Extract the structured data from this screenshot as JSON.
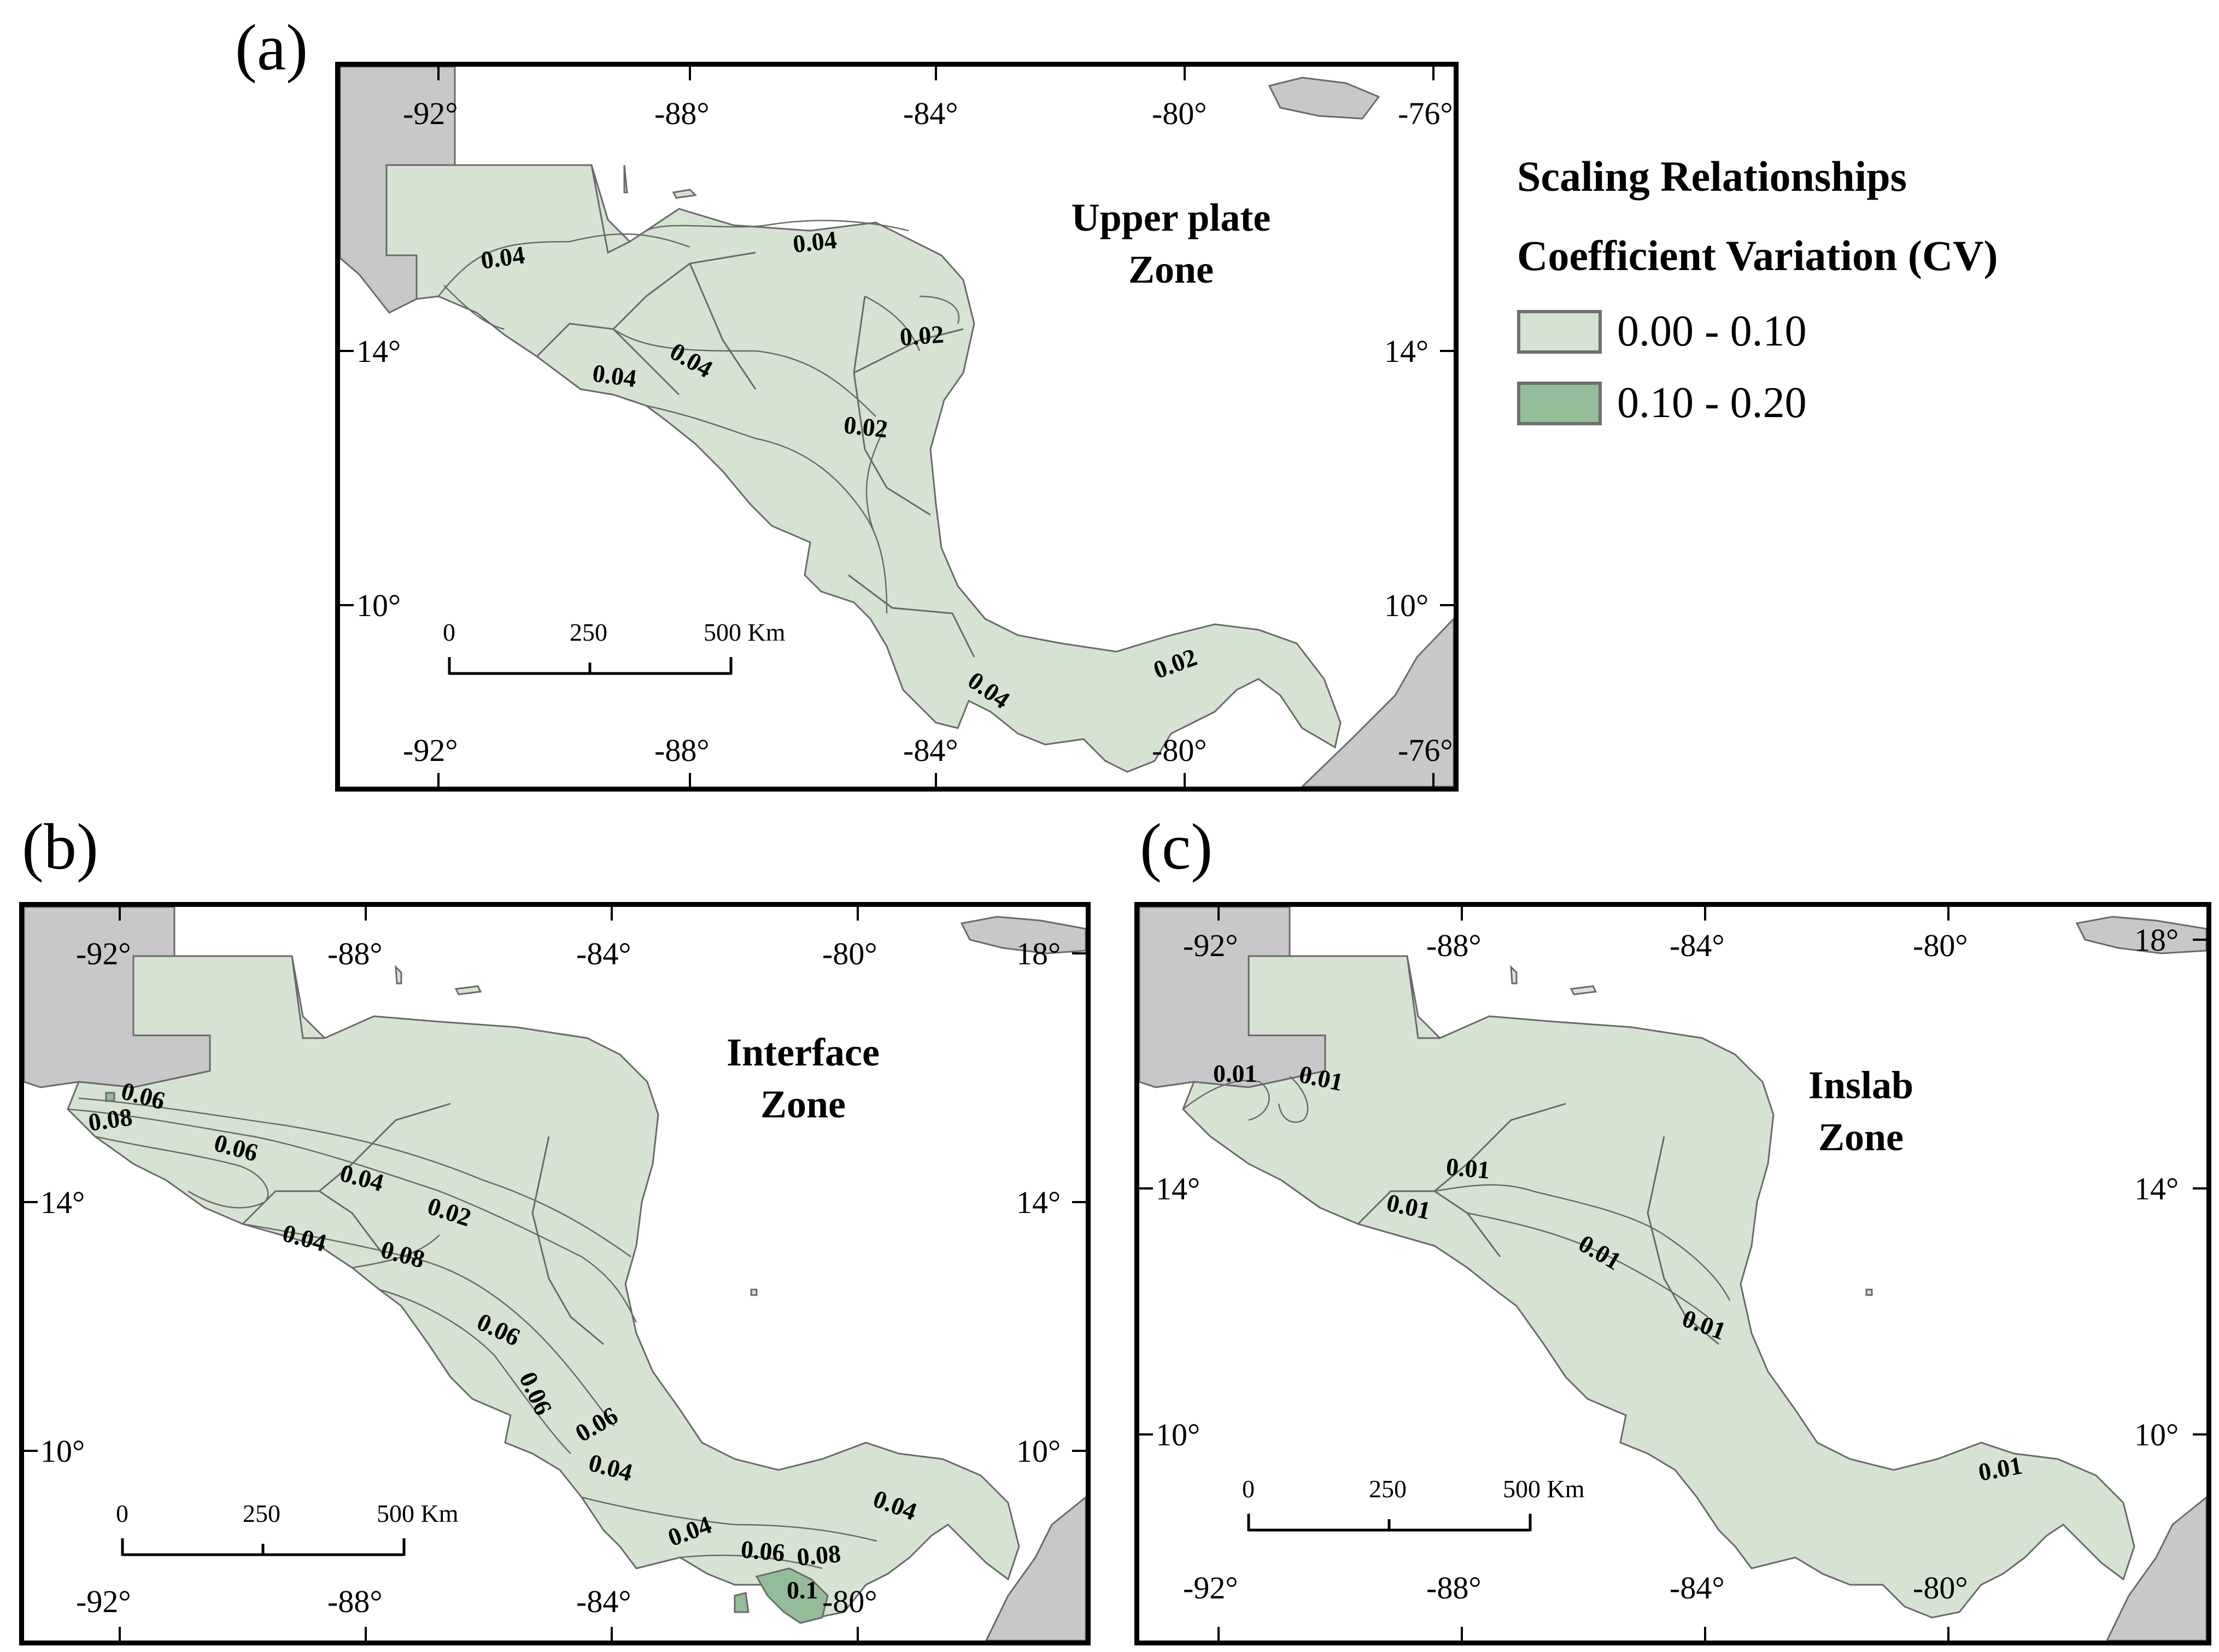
{
  "colors": {
    "land_light": "#d6e3d3",
    "land_dark": "#95bc98",
    "other_land": "#c8c8ca",
    "boundary": "#6a6a6a",
    "frame": "#000000"
  },
  "legend": {
    "title1": "Scaling Relationships",
    "title2": "Coefficient Variation (CV)",
    "items": [
      {
        "label": "0.00 - 0.10",
        "color": "#d6e3d3"
      },
      {
        "label": "0.10 - 0.20",
        "color": "#95bc98"
      }
    ]
  },
  "panels": [
    {
      "letter": "(a)",
      "title": [
        "Upper plate",
        "Zone"
      ],
      "top_lons": [
        "-92°",
        "-88°",
        "-84°",
        "-80°",
        "-76°"
      ],
      "bottom_lons": [
        "-92°",
        "-88°",
        "-84°",
        "-80°",
        "-76°"
      ],
      "left_lats": [
        "14°",
        "10°"
      ],
      "right_lats": [
        "14°",
        "10°"
      ],
      "contours": [
        "0.04",
        "0.04",
        "0.04",
        "0.04",
        "0.02",
        "0.02",
        "0.04",
        "0.02"
      ],
      "scale": {
        "labels": [
          "0",
          "250",
          "500 Km"
        ]
      }
    },
    {
      "letter": "(b)",
      "title": [
        "Interface",
        "Zone"
      ],
      "top_lons": [
        "-92°",
        "-88°",
        "-84°",
        "-80°"
      ],
      "bottom_lons": [
        "-92°",
        "-88°",
        "-84°",
        "-80°"
      ],
      "left_lats": [
        "14°",
        "10°"
      ],
      "right_lats": [
        "18°",
        "14°",
        "10°"
      ],
      "contours": [
        "0.06",
        "0.08",
        "0.06",
        "0.04",
        "0.02",
        "0.04",
        "0.08",
        "0.06",
        "0.06",
        "0.06",
        "0.04",
        "0.04",
        "0.06",
        "0.08",
        "0.1",
        "0.04"
      ],
      "scale": {
        "labels": [
          "0",
          "250",
          "500 Km"
        ]
      }
    },
    {
      "letter": "(c)",
      "title": [
        "Inslab",
        "Zone"
      ],
      "top_lons": [
        "-92°",
        "-88°",
        "-84°",
        "-80°"
      ],
      "bottom_lons": [
        "-92°",
        "-88°",
        "-84°",
        "-80°"
      ],
      "left_lats": [
        "14°",
        "10°"
      ],
      "right_lats": [
        "18°",
        "14°",
        "10°"
      ],
      "contours": [
        "0.01",
        "0.01",
        "0.01",
        "0.01",
        "0.01",
        "0.01",
        "0.01"
      ],
      "scale": {
        "labels": [
          "0",
          "250",
          "500 Km"
        ]
      }
    }
  ]
}
